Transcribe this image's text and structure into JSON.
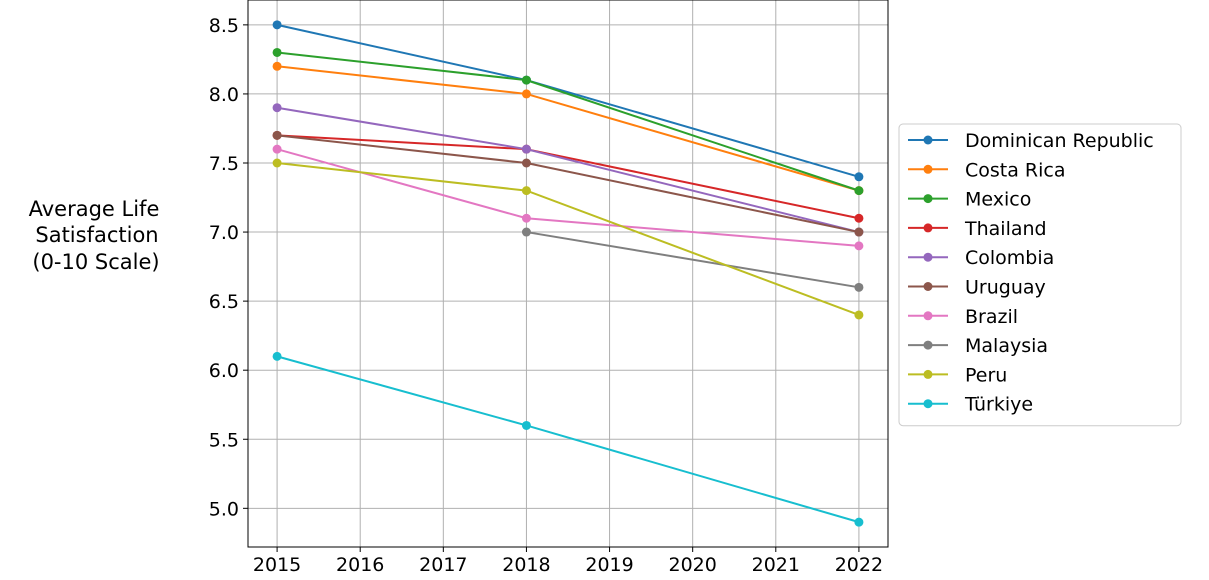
{
  "chart_data": {
    "type": "line",
    "title": "",
    "xlabel": "",
    "ylabel_lines": [
      "Average Life",
      "Satisfaction",
      "(0-10 Scale)"
    ],
    "xlim": [
      2014.65,
      2022.35
    ],
    "ylim": [
      4.72,
      8.68
    ],
    "x_ticks": [
      2015,
      2016,
      2017,
      2018,
      2019,
      2020,
      2021,
      2022
    ],
    "y_ticks": [
      "5.0",
      "5.5",
      "6.0",
      "6.5",
      "7.0",
      "7.5",
      "8.0",
      "8.5"
    ],
    "grid": true,
    "legend_placement": "outside-right",
    "series": [
      {
        "name": "Dominican Republic",
        "color": "#1f77b4",
        "points": [
          [
            2015,
            8.5
          ],
          [
            2018,
            8.1
          ],
          [
            2022,
            7.4
          ]
        ]
      },
      {
        "name": "Costa Rica",
        "color": "#ff7f0e",
        "points": [
          [
            2015,
            8.2
          ],
          [
            2018,
            8.0
          ],
          [
            2022,
            7.3
          ]
        ]
      },
      {
        "name": "Mexico",
        "color": "#2ca02c",
        "points": [
          [
            2015,
            8.3
          ],
          [
            2018,
            8.1
          ],
          [
            2022,
            7.3
          ]
        ]
      },
      {
        "name": "Thailand",
        "color": "#d62728",
        "points": [
          [
            2015,
            7.7
          ],
          [
            2018,
            7.6
          ],
          [
            2022,
            7.1
          ]
        ]
      },
      {
        "name": "Colombia",
        "color": "#9467bd",
        "points": [
          [
            2015,
            7.9
          ],
          [
            2018,
            7.6
          ],
          [
            2022,
            7.0
          ]
        ]
      },
      {
        "name": "Uruguay",
        "color": "#8c564b",
        "points": [
          [
            2015,
            7.7
          ],
          [
            2018,
            7.5
          ],
          [
            2022,
            7.0
          ]
        ]
      },
      {
        "name": "Brazil",
        "color": "#e377c2",
        "points": [
          [
            2015,
            7.6
          ],
          [
            2018,
            7.1
          ],
          [
            2022,
            6.9
          ]
        ]
      },
      {
        "name": "Malaysia",
        "color": "#7f7f7f",
        "points": [
          [
            2018,
            7.0
          ],
          [
            2022,
            6.6
          ]
        ]
      },
      {
        "name": "Peru",
        "color": "#bcbd22",
        "points": [
          [
            2015,
            7.5
          ],
          [
            2018,
            7.3
          ],
          [
            2022,
            6.4
          ]
        ]
      },
      {
        "name": "Türkiye",
        "color": "#17becf",
        "points": [
          [
            2015,
            6.1
          ],
          [
            2018,
            5.6
          ],
          [
            2022,
            4.9
          ]
        ]
      }
    ]
  }
}
